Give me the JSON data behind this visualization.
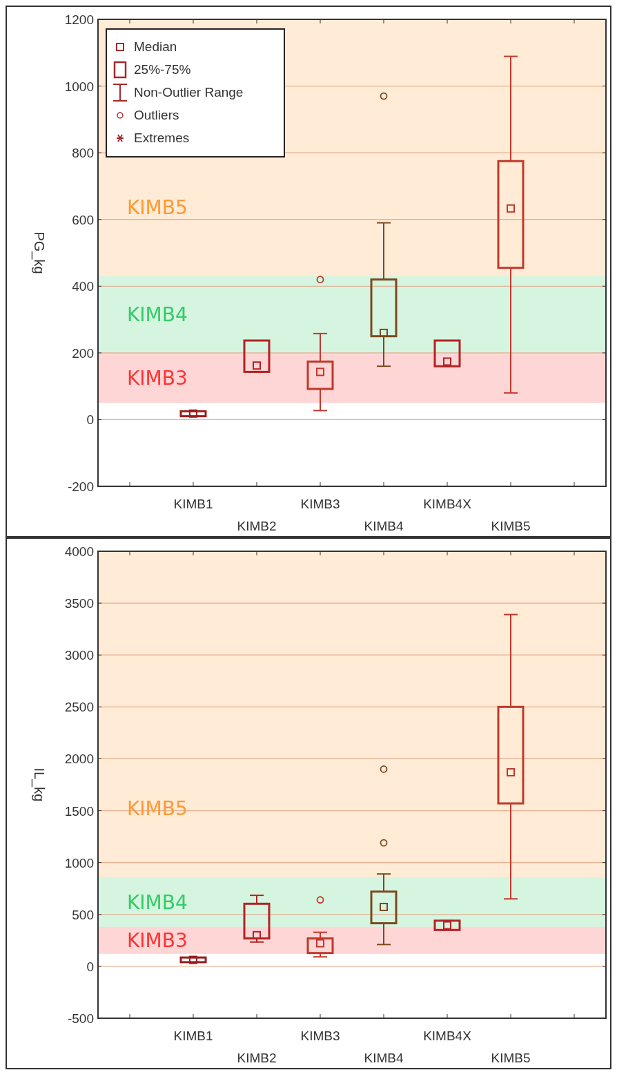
{
  "chart_data": [
    {
      "type": "box",
      "ylabel": "PG_kg",
      "categories": [
        null,
        "KIMB1",
        "KIMB2",
        "KIMB3",
        "KIMB4",
        "KIMB4X",
        "KIMB5",
        null
      ],
      "boxes": [
        null,
        {
          "low": 10,
          "q1": 10,
          "median": 18,
          "q3": 25,
          "high": 25
        },
        {
          "low": 143,
          "q1": 143,
          "median": 162,
          "q3": 237,
          "high": 237
        },
        {
          "low": 27,
          "q1": 92,
          "median": 143,
          "q3": 174,
          "high": 258,
          "outliers": [
            420
          ]
        },
        {
          "low": 160,
          "q1": 250,
          "median": 260,
          "q3": 420,
          "high": 590,
          "outliers": [
            970
          ]
        },
        {
          "low": 160,
          "q1": 160,
          "median": 174,
          "q3": 237,
          "high": 237
        },
        {
          "low": 80,
          "q1": 455,
          "median": 633,
          "q3": 775,
          "high": 1089
        },
        null
      ],
      "colors": [
        null,
        "#9b1c1c",
        "#b22222",
        "#c0392b",
        "#7a4a1e",
        "#b22222",
        "#c0392b",
        null
      ],
      "ylim": [
        -200,
        1200
      ],
      "yticks": [
        -200,
        0,
        200,
        400,
        600,
        800,
        1000,
        1200
      ],
      "grid": "y",
      "bands": [
        {
          "axis": "y",
          "from": 430,
          "to": 1200,
          "label": "KIMB5",
          "color": "#ff9933"
        },
        {
          "axis": "y",
          "from": 200,
          "to": 430,
          "label": "KIMB4",
          "color": "#33cc66"
        },
        {
          "axis": "y",
          "from": 50,
          "to": 200,
          "label": "KIMB3",
          "color": "#ff3333"
        }
      ],
      "annotations": [
        "Median",
        "25%-75%",
        "Non-Outlier Range",
        "Outliers",
        "Extremes"
      ]
    },
    {
      "type": "box",
      "ylabel": "IL_kg",
      "categories": [
        null,
        "KIMB1",
        "KIMB2",
        "KIMB3",
        "KIMB4",
        "KIMB4X",
        "KIMB5",
        null
      ],
      "boxes": [
        null,
        {
          "low": 40,
          "q1": 40,
          "median": 62,
          "q3": 85,
          "high": 85
        },
        {
          "low": 234,
          "q1": 269,
          "median": 300,
          "q3": 603,
          "high": 684
        },
        {
          "low": 91,
          "q1": 128,
          "median": 222,
          "q3": 269,
          "high": 328,
          "outliers": [
            640
          ]
        },
        {
          "low": 210,
          "q1": 415,
          "median": 572,
          "q3": 720,
          "high": 890,
          "outliers": [
            1190,
            1900
          ]
        },
        {
          "low": 350,
          "q1": 350,
          "median": 395,
          "q3": 440,
          "high": 440
        },
        {
          "low": 650,
          "q1": 1570,
          "median": 1870,
          "q3": 2500,
          "high": 3390
        },
        null
      ],
      "colors": [
        null,
        "#9b1c1c",
        "#b22222",
        "#c0392b",
        "#7a4a1e",
        "#b22222",
        "#c0392b",
        null
      ],
      "ylim": [
        -500,
        4000
      ],
      "yticks": [
        -500,
        0,
        500,
        1000,
        1500,
        2000,
        2500,
        3000,
        3500,
        4000
      ],
      "grid": "y",
      "bands": [
        {
          "axis": "y",
          "from": 860,
          "to": 4000,
          "label": "KIMB5",
          "color": "#ff9933"
        },
        {
          "axis": "y",
          "from": 380,
          "to": 860,
          "label": "KIMB4",
          "color": "#33cc66"
        },
        {
          "axis": "y",
          "from": 120,
          "to": 380,
          "label": "KIMB3",
          "color": "#ff3333"
        }
      ]
    }
  ]
}
